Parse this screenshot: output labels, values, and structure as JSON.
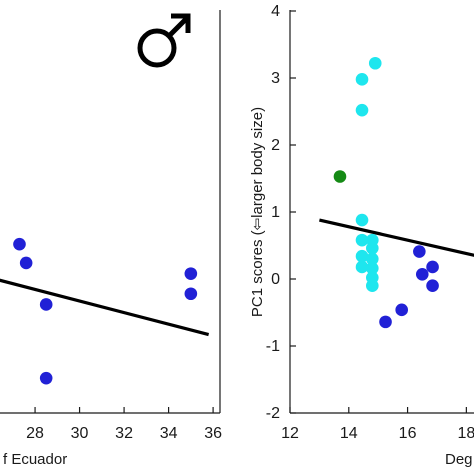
{
  "chart_data": [
    {
      "type": "scatter",
      "panel": "left (cropped)",
      "symbol": "♂",
      "xlabel_fragment": "f Ecuador",
      "x_ticks": [
        "28",
        "30",
        "32",
        "34",
        "36"
      ],
      "xlim": [
        26.2,
        36.4
      ],
      "ylim": [
        -2,
        4
      ],
      "grid": false,
      "series": [
        {
          "color": "#2121d6",
          "points": [
            {
              "x": 27.3,
              "y": 0.52
            },
            {
              "x": 27.6,
              "y": 0.24
            },
            {
              "x": 28.5,
              "y": -0.38
            },
            {
              "x": 28.5,
              "y": -1.48
            },
            {
              "x": 35.0,
              "y": 0.08
            },
            {
              "x": 35.0,
              "y": -0.22
            }
          ]
        }
      ],
      "trendline": {
        "color": "#000000",
        "x": [
          26.2,
          35.8
        ],
        "y": [
          0.0,
          -0.83
        ]
      }
    },
    {
      "type": "scatter",
      "panel": "right (cropped)",
      "ylabel": "PC1 scores (⇦larger body size)",
      "xlabel_fragment": "Deg",
      "x_ticks": [
        "12",
        "14",
        "16",
        "18"
      ],
      "y_ticks": [
        "-2",
        "-1",
        "0",
        "1",
        "2",
        "3",
        "4"
      ],
      "xlim": [
        12,
        18.6
      ],
      "ylim": [
        -2,
        4
      ],
      "grid": false,
      "series": [
        {
          "color": "#1ee6ee",
          "points": [
            {
              "x": 14.45,
              "y": 2.98
            },
            {
              "x": 14.9,
              "y": 3.22
            },
            {
              "x": 14.45,
              "y": 2.52
            },
            {
              "x": 14.45,
              "y": 0.88
            },
            {
              "x": 14.45,
              "y": 0.58
            },
            {
              "x": 14.45,
              "y": 0.34
            },
            {
              "x": 14.45,
              "y": 0.18
            },
            {
              "x": 14.8,
              "y": 0.58
            },
            {
              "x": 14.8,
              "y": 0.46
            },
            {
              "x": 14.8,
              "y": 0.3
            },
            {
              "x": 14.8,
              "y": 0.16
            },
            {
              "x": 14.8,
              "y": 0.02
            },
            {
              "x": 14.8,
              "y": -0.1
            }
          ]
        },
        {
          "color": "#158a15",
          "points": [
            {
              "x": 13.7,
              "y": 1.53
            }
          ]
        },
        {
          "color": "#2121d6",
          "points": [
            {
              "x": 15.25,
              "y": -0.64
            },
            {
              "x": 15.8,
              "y": -0.46
            },
            {
              "x": 16.4,
              "y": 0.41
            },
            {
              "x": 16.5,
              "y": 0.07
            },
            {
              "x": 16.85,
              "y": 0.18
            },
            {
              "x": 16.85,
              "y": -0.1
            }
          ]
        }
      ],
      "trendline": {
        "color": "#000000",
        "x": [
          13.0,
          18.6
        ],
        "y": [
          0.88,
          0.32
        ]
      }
    }
  ]
}
